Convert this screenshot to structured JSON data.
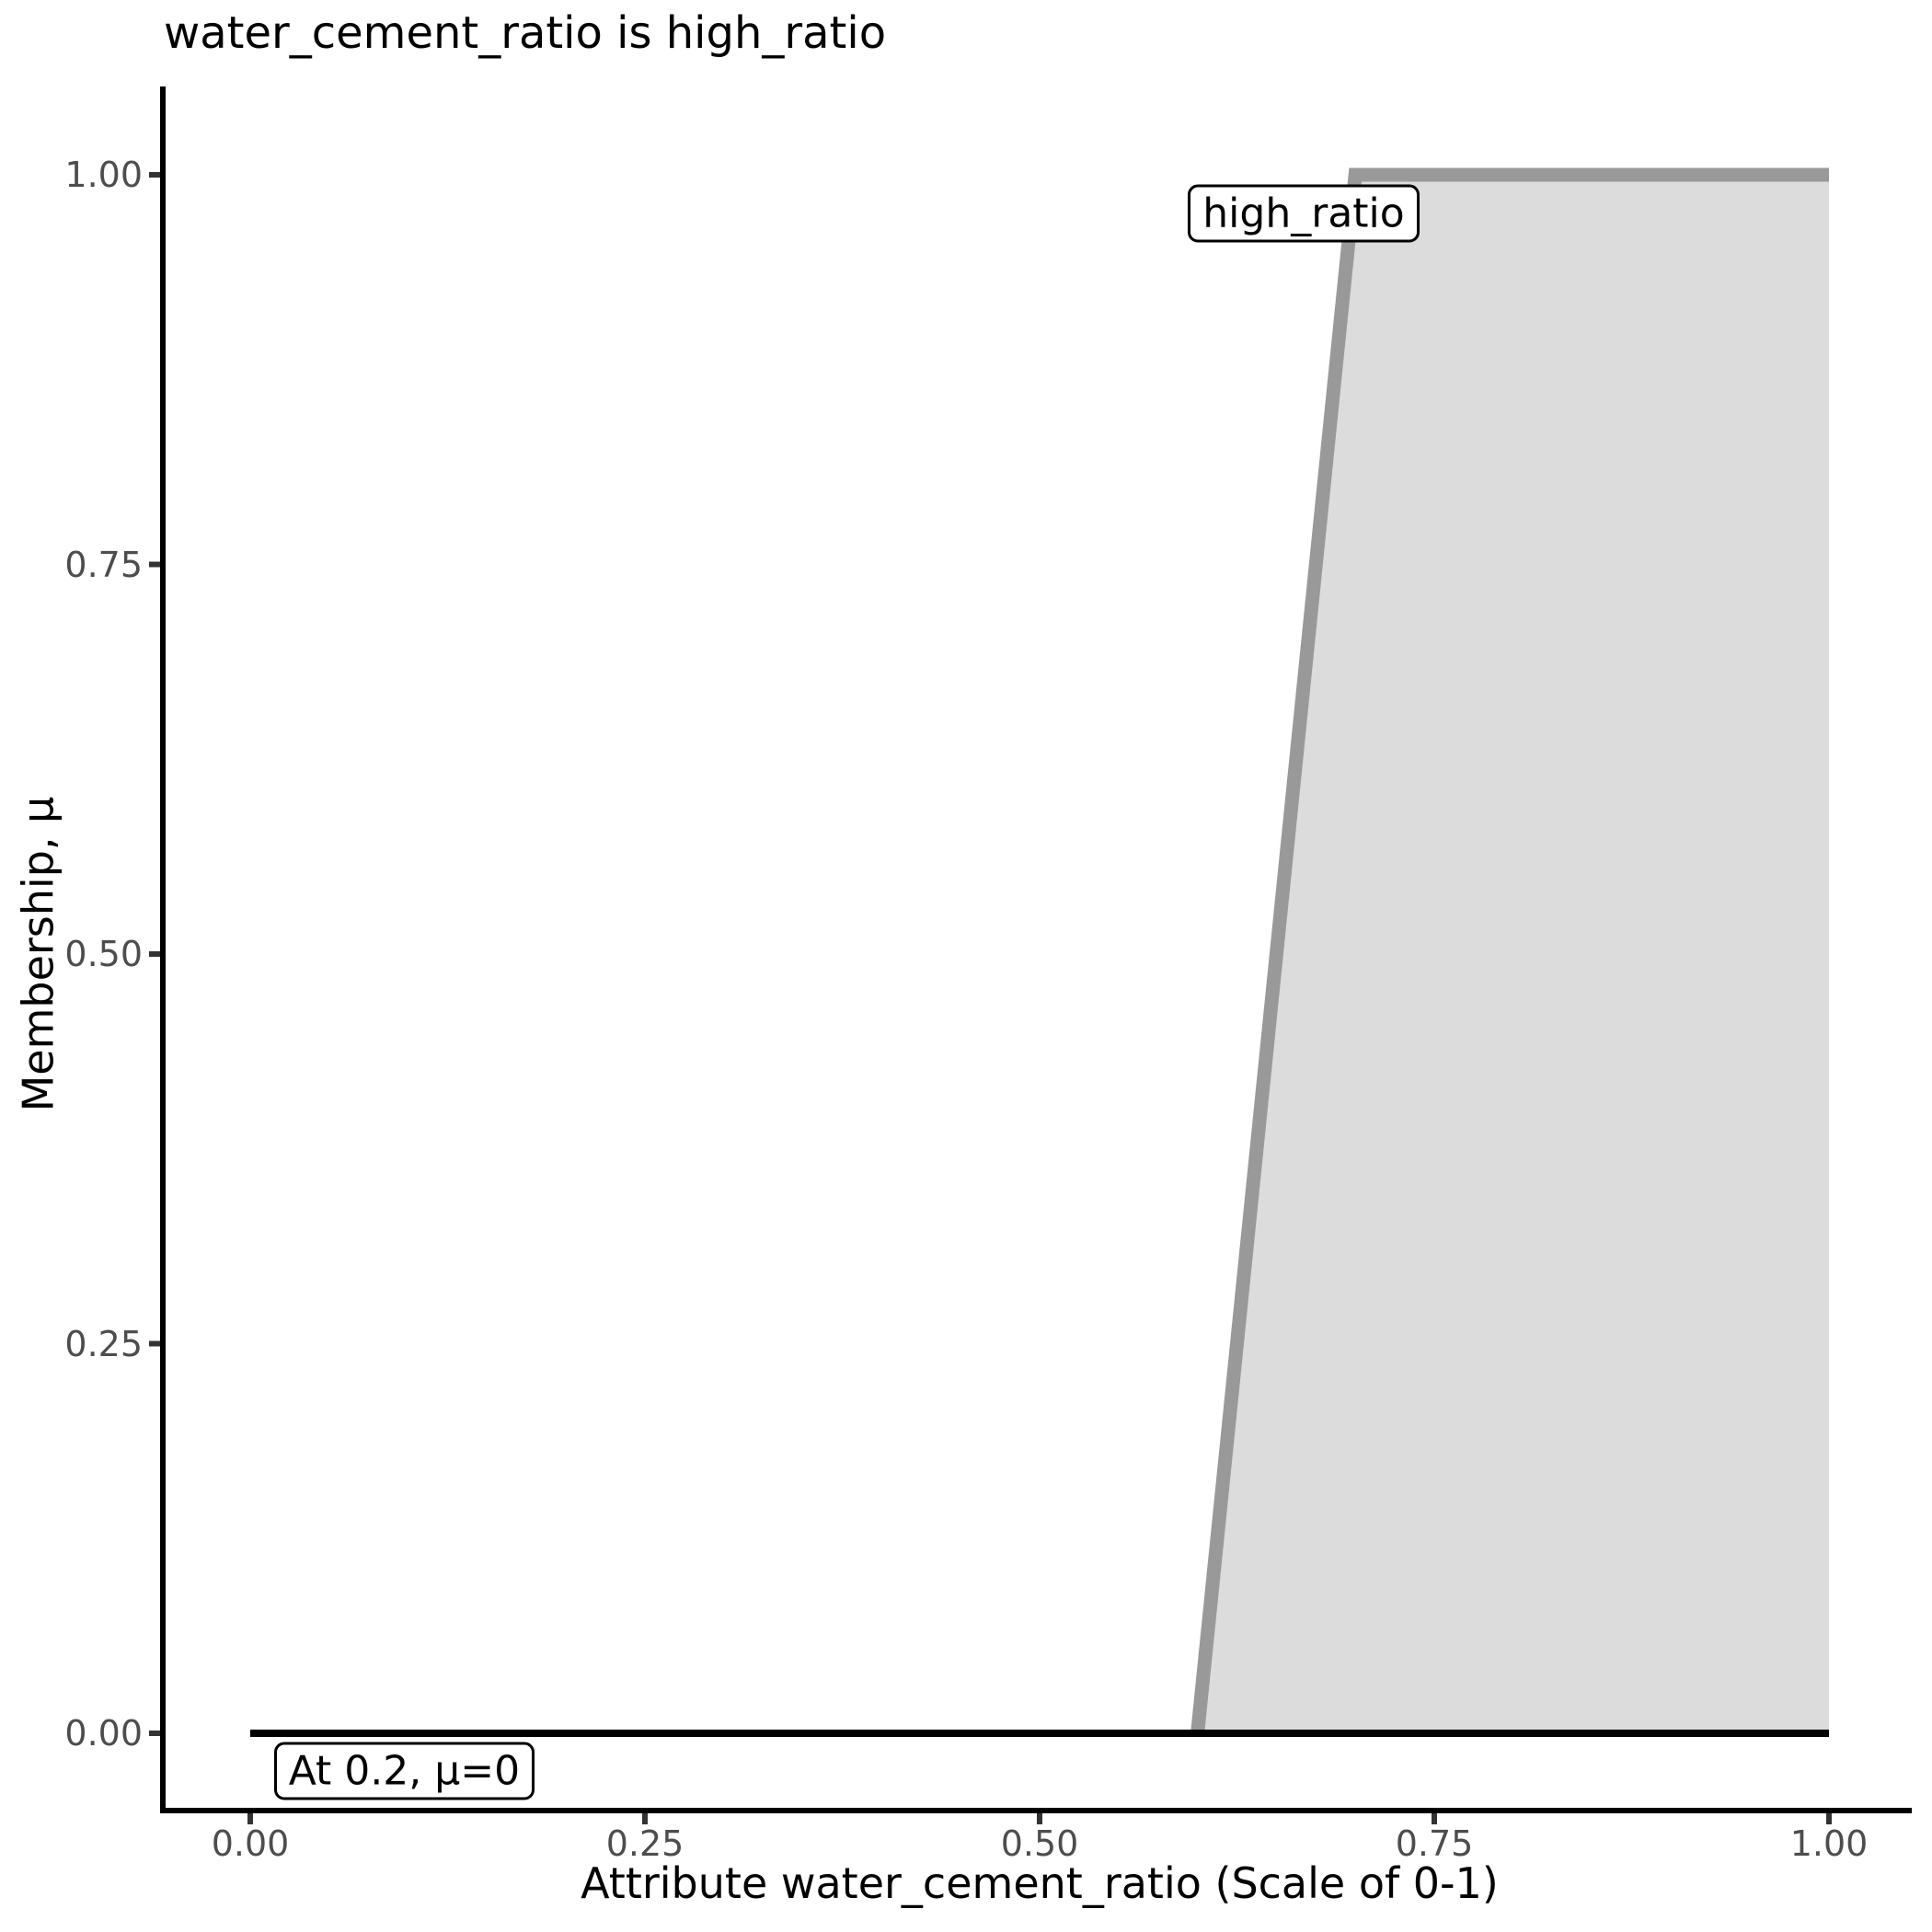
{
  "title": "water_cement_ratio is high_ratio",
  "colors": {
    "background": "#ffffff",
    "membership_line": "#999999",
    "membership_fill": "#dcdcdc",
    "baseline": "#000000",
    "axis_spine": "#000000",
    "tick_mark": "#333333",
    "tick_label": "#4d4d4d"
  },
  "chart_data": {
    "type": "area",
    "title": "water_cement_ratio is high_ratio",
    "xlabel": "Attribute water_cement_ratio (Scale of 0-1)",
    "ylabel": "Membership, μ",
    "xlim": [
      0,
      1
    ],
    "ylim": [
      0,
      1
    ],
    "grid": false,
    "legend": "none",
    "x_ticks": [
      {
        "value": 0.0,
        "label": "0.00"
      },
      {
        "value": 0.25,
        "label": "0.25"
      },
      {
        "value": 0.5,
        "label": "0.50"
      },
      {
        "value": 0.75,
        "label": "0.75"
      },
      {
        "value": 1.0,
        "label": "1.00"
      }
    ],
    "y_ticks": [
      {
        "value": 0.0,
        "label": "0.00"
      },
      {
        "value": 0.25,
        "label": "0.25"
      },
      {
        "value": 0.5,
        "label": "0.50"
      },
      {
        "value": 0.75,
        "label": "0.75"
      },
      {
        "value": 1.0,
        "label": "1.00"
      }
    ],
    "series": [
      {
        "name": "high_ratio",
        "type": "area",
        "shape": "trapezoidal-ramp",
        "points": [
          [
            0.6,
            0
          ],
          [
            0.7,
            1
          ],
          [
            1.0,
            1
          ]
        ],
        "line_color": "#999999",
        "fill_color": "#dcdcdc"
      },
      {
        "name": "zero-membership-baseline",
        "type": "line",
        "points": [
          [
            0.0,
            0
          ],
          [
            1.0,
            0
          ]
        ],
        "line_color": "#000000"
      }
    ],
    "annotations": [
      {
        "id": "set-name-label",
        "text": "high_ratio",
        "x": 0.594,
        "y": 0.975
      },
      {
        "id": "value-callout-label",
        "text": "At 0.2, μ=0",
        "x": 0.015,
        "y": -0.024
      }
    ]
  }
}
